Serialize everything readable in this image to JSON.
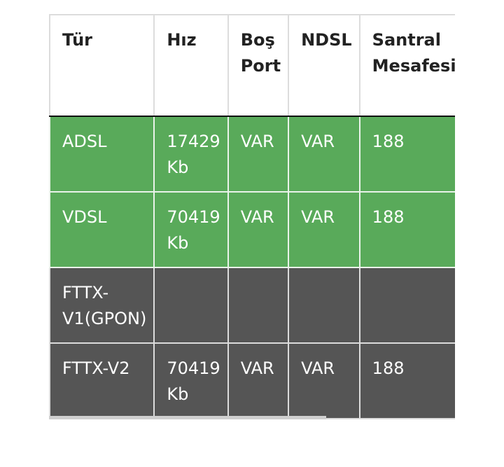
{
  "table": {
    "headers": [
      "Tür",
      "Hız",
      "Boş Port",
      "NDSL",
      "Santral Mesafesi"
    ],
    "rows": [
      {
        "status": "available",
        "cells": [
          "ADSL",
          "17429 Kb",
          "VAR",
          "VAR",
          "188"
        ]
      },
      {
        "status": "available",
        "cells": [
          "VDSL",
          "70419 Kb",
          "VAR",
          "VAR",
          "188"
        ]
      },
      {
        "status": "unavailable",
        "cells": [
          "FTTX-V1(GPON)",
          "",
          "",
          "",
          ""
        ]
      },
      {
        "status": "unavailable",
        "cells": [
          "FTTX-V2",
          "70419 Kb",
          "VAR",
          "VAR",
          "188"
        ]
      }
    ]
  },
  "colors": {
    "available_row": "#59aa5a",
    "unavailable_row": "#555555",
    "header_bg": "#ffffff"
  }
}
